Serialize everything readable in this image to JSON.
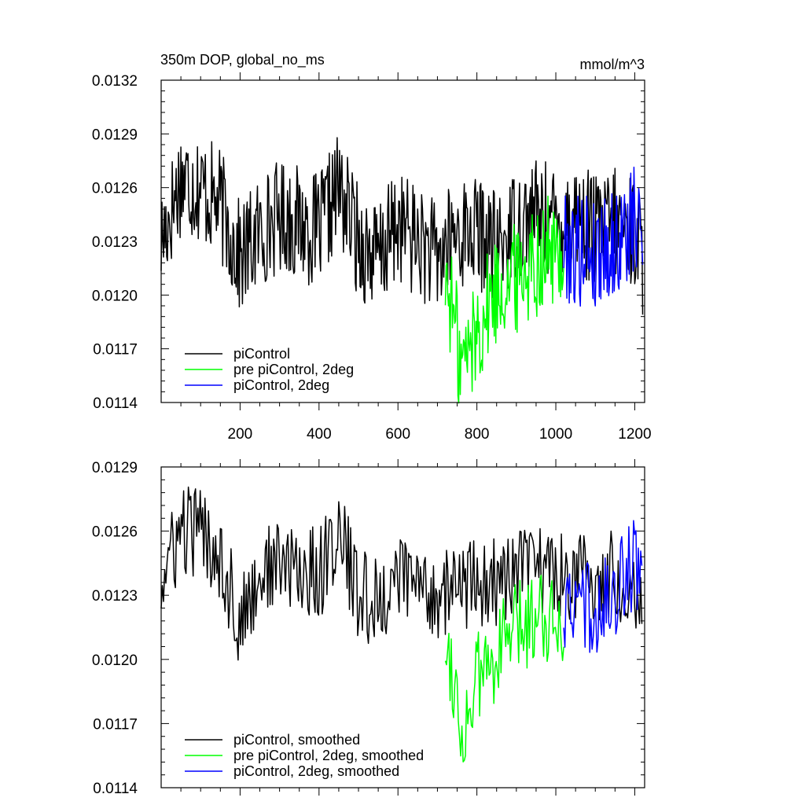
{
  "figure": {
    "left_title": "350m DOP, global_no_ms",
    "right_title": "mmol/m^3"
  },
  "chart_data": [
    {
      "type": "line",
      "title": "350m DOP, global_no_ms",
      "units": "mmol/m^3",
      "xlabel": "",
      "ylabel": "",
      "xlim": [
        0,
        1225
      ],
      "ylim": [
        0.0114,
        0.0132
      ],
      "xticks": [
        200,
        400,
        600,
        800,
        1000,
        1200
      ],
      "xtick_labels": [
        "200",
        "400",
        "600",
        "800",
        "1000",
        "1200"
      ],
      "yticks": [
        0.0114,
        0.0117,
        0.012,
        0.0123,
        0.0126,
        0.0129,
        0.0132
      ],
      "ytick_labels": [
        "0.0114",
        "0.0117",
        "0.0120",
        "0.0123",
        "0.0126",
        "0.0129",
        "0.0132"
      ],
      "grid": false,
      "legend_position": "bottom-left",
      "series": [
        {
          "name": "piControl",
          "color": "#000000",
          "x": [
            0,
            50,
            100,
            150,
            200,
            250,
            300,
            350,
            400,
            450,
            500,
            550,
            600,
            650,
            700,
            750,
            800,
            850,
            900,
            950,
            1000,
            1050,
            1100,
            1150,
            1200,
            1220
          ],
          "y": [
            0.0123,
            0.01265,
            0.0126,
            0.0125,
            0.0122,
            0.01235,
            0.01245,
            0.0124,
            0.01235,
            0.0126,
            0.0123,
            0.0122,
            0.0124,
            0.0123,
            0.0122,
            0.01235,
            0.01235,
            0.01225,
            0.0124,
            0.01245,
            0.0124,
            0.01245,
            0.01235,
            0.0124,
            0.01235,
            0.0122
          ]
        },
        {
          "name": "pre piControl, 2deg",
          "color": "#00ff00",
          "x": [
            720,
            740,
            760,
            780,
            800,
            820,
            840,
            860,
            880,
            900,
            920,
            940,
            960,
            980,
            1000,
            1020
          ],
          "y": [
            0.0121,
            0.0119,
            0.0116,
            0.0117,
            0.0118,
            0.0119,
            0.012,
            0.01205,
            0.0121,
            0.0121,
            0.01215,
            0.0122,
            0.0122,
            0.01225,
            0.0122,
            0.01225
          ]
        },
        {
          "name": "piControl, 2deg",
          "color": "#0000ff",
          "x": [
            1020,
            1040,
            1060,
            1080,
            1100,
            1120,
            1140,
            1160,
            1180,
            1200,
            1220
          ],
          "y": [
            0.0123,
            0.01225,
            0.01225,
            0.0123,
            0.0122,
            0.0123,
            0.01225,
            0.0123,
            0.01235,
            0.0124,
            0.01235
          ]
        }
      ]
    },
    {
      "type": "line",
      "xlabel": "",
      "ylabel": "",
      "xlim": [
        0,
        1225
      ],
      "ylim": [
        0.0114,
        0.0129
      ],
      "xticks": [
        200,
        400,
        600,
        800,
        1000,
        1200
      ],
      "xtick_labels": [],
      "yticks": [
        0.0114,
        0.0117,
        0.012,
        0.0123,
        0.0126,
        0.0129
      ],
      "ytick_labels": [
        "0.0114",
        "0.0117",
        "0.0120",
        "0.0123",
        "0.0126",
        "0.0129"
      ],
      "grid": false,
      "legend_position": "bottom-left",
      "series": [
        {
          "name": "piControl, smoothed",
          "color": "#000000",
          "x": [
            0,
            50,
            100,
            150,
            200,
            250,
            300,
            350,
            400,
            450,
            500,
            550,
            600,
            650,
            700,
            750,
            800,
            850,
            900,
            950,
            1000,
            1050,
            1100,
            1150,
            1200,
            1220
          ],
          "y": [
            0.01235,
            0.0126,
            0.0126,
            0.0125,
            0.01215,
            0.0124,
            0.01245,
            0.0124,
            0.0124,
            0.0126,
            0.0123,
            0.01225,
            0.0124,
            0.01235,
            0.0123,
            0.01235,
            0.01235,
            0.01235,
            0.0124,
            0.01245,
            0.0124,
            0.0124,
            0.01235,
            0.0124,
            0.01235,
            0.01225
          ]
        },
        {
          "name": "pre piControl, 2deg, smoothed",
          "color": "#00ff00",
          "x": [
            720,
            740,
            760,
            780,
            800,
            820,
            840,
            860,
            880,
            900,
            920,
            940,
            960,
            980,
            1000,
            1020
          ],
          "y": [
            0.0121,
            0.01195,
            0.01165,
            0.01175,
            0.0119,
            0.01195,
            0.012,
            0.01205,
            0.0121,
            0.01215,
            0.01215,
            0.0122,
            0.01225,
            0.0122,
            0.0122,
            0.0122
          ]
        },
        {
          "name": "piControl, 2deg, smoothed",
          "color": "#0000ff",
          "x": [
            1020,
            1040,
            1060,
            1080,
            1100,
            1120,
            1140,
            1160,
            1180,
            1200,
            1220
          ],
          "y": [
            0.01225,
            0.0122,
            0.01225,
            0.01225,
            0.0122,
            0.01225,
            0.0123,
            0.01235,
            0.0124,
            0.01245,
            0.0123
          ]
        }
      ]
    }
  ]
}
